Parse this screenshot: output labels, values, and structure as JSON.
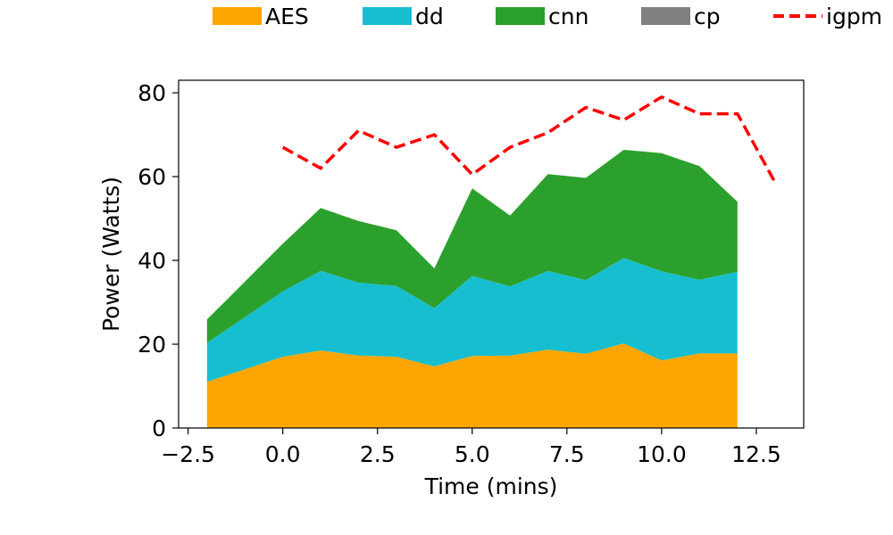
{
  "chart_data": {
    "type": "area",
    "stacked": true,
    "xlabel": "Time (mins)",
    "ylabel": "Power (Watts)",
    "xlim": [
      -2.75,
      13.75
    ],
    "ylim": [
      0,
      83
    ],
    "xticks": [
      -2.5,
      0.0,
      2.5,
      5.0,
      7.5,
      10.0,
      12.5
    ],
    "xtick_labels": [
      "−2.5",
      "0.0",
      "2.5",
      "5.0",
      "7.5",
      "10.0",
      "12.5"
    ],
    "yticks": [
      0,
      20,
      40,
      60,
      80
    ],
    "ytick_labels": [
      "0",
      "20",
      "40",
      "60",
      "80"
    ],
    "grid": false,
    "legend_position": "top",
    "x": [
      -2,
      0,
      1,
      2,
      3,
      4,
      5,
      6,
      7,
      8,
      9,
      10,
      11,
      12
    ],
    "series": [
      {
        "name": "AES",
        "color": "#ffa500",
        "values": [
          11,
          17,
          18.5,
          17.3,
          17,
          14.7,
          17.2,
          17.3,
          18.7,
          17.7,
          20.2,
          16.1,
          17.8,
          17.8
        ]
      },
      {
        "name": "dd",
        "color": "#17becf",
        "values": [
          9.3,
          15.6,
          19,
          17.4,
          16.9,
          13.9,
          19.1,
          16.5,
          18.8,
          17.6,
          20.4,
          21.3,
          17.6,
          19.5
        ]
      },
      {
        "name": "cnn",
        "color": "#2ca02c",
        "values": [
          5.6,
          11.4,
          15,
          14.7,
          13.3,
          9.5,
          20.9,
          16.9,
          23.1,
          24.4,
          25.8,
          28.2,
          27.1,
          16.7
        ]
      },
      {
        "name": "cp",
        "color": "#808080",
        "values": [
          0,
          0,
          0,
          0,
          0,
          0,
          0,
          0,
          0,
          0,
          0,
          0,
          0,
          0
        ]
      }
    ],
    "line": {
      "name": "igpm",
      "color": "#ff0000",
      "style": "dashed",
      "x": [
        0,
        1,
        2,
        3,
        4,
        5,
        6,
        7,
        8,
        9,
        10,
        11,
        12,
        13
      ],
      "values": [
        67,
        62,
        71,
        67,
        70,
        60.5,
        67,
        70.5,
        76.5,
        73.5,
        79,
        75,
        75,
        58.5
      ]
    }
  }
}
